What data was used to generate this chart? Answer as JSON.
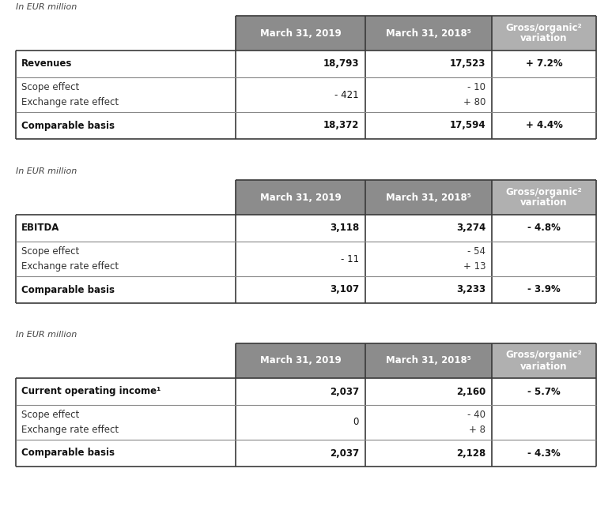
{
  "background_color": "#ffffff",
  "col_label": "In EUR million",
  "col1_header": "March 31, 2019",
  "col2_header": "March 31, 2018⁵",
  "col3_header": "Gross/organic²\nvariation",
  "header_dark_color": "#8c8c8c",
  "header_light_color": "#b0b0b0",
  "border_color": "#3a3a3a",
  "inner_line_color": "#888888",
  "text_dark": "#111111",
  "text_mid": "#333333",
  "tables": [
    {
      "rows": [
        {
          "label": "Revenues",
          "col1": "18,793",
          "col2": "17,523",
          "col3": "+ 7.2%",
          "bold": true
        },
        {
          "label": "Scope effect\nExchange rate effect",
          "col1": "- 421",
          "col2": "- 10\n+ 80",
          "col3": "",
          "bold": false
        },
        {
          "label": "Comparable basis",
          "col1": "18,372",
          "col2": "17,594",
          "col3": "+ 4.4%",
          "bold": true
        }
      ]
    },
    {
      "rows": [
        {
          "label": "EBITDA",
          "col1": "3,118",
          "col2": "3,274",
          "col3": "- 4.8%",
          "bold": true
        },
        {
          "label": "Scope effect\nExchange rate effect",
          "col1": "- 11",
          "col2": "- 54\n+ 13",
          "col3": "",
          "bold": false
        },
        {
          "label": "Comparable basis",
          "col1": "3,107",
          "col2": "3,233",
          "col3": "- 3.9%",
          "bold": true
        }
      ]
    },
    {
      "rows": [
        {
          "label": "Current operating income¹",
          "col1": "2,037",
          "col2": "2,160",
          "col3": "- 5.7%",
          "bold": true
        },
        {
          "label": "Scope effect\nExchange rate effect",
          "col1": "0",
          "col2": "- 40\n+ 8",
          "col3": "",
          "bold": false
        },
        {
          "label": "Comparable basis",
          "col1": "2,037",
          "col2": "2,128",
          "col3": "- 4.3%",
          "bold": true
        }
      ]
    }
  ]
}
